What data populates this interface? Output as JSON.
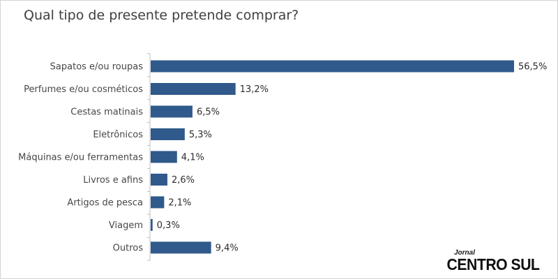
{
  "brand": {
    "small": "Jornal",
    "main": "CENTRO SUL"
  },
  "colors": {
    "bar": "#2f5a8b",
    "axis": "#bfbfbf"
  },
  "chart_data": {
    "type": "bar",
    "orientation": "horizontal",
    "title": "Qual tipo de presente pretende comprar?",
    "xlabel": "",
    "ylabel": "",
    "grid": false,
    "legend": "none",
    "xlim": [
      0,
      56.5
    ],
    "categories": [
      "Sapatos e/ou roupas",
      "Perfumes e/ou cosméticos",
      "Cestas matinais",
      "Eletrônicos",
      "Máquinas e/ou ferramentas",
      "Livros e afins",
      "Artigos de pesca",
      "Viagem",
      "Outros"
    ],
    "values": [
      56.5,
      13.2,
      6.5,
      5.3,
      4.1,
      2.6,
      2.1,
      0.3,
      9.4
    ],
    "value_labels": [
      "56,5%",
      "13,2%",
      "6,5%",
      "5,3%",
      "4,1%",
      "2,6%",
      "2,1%",
      "0,3%",
      "9,4%"
    ]
  }
}
